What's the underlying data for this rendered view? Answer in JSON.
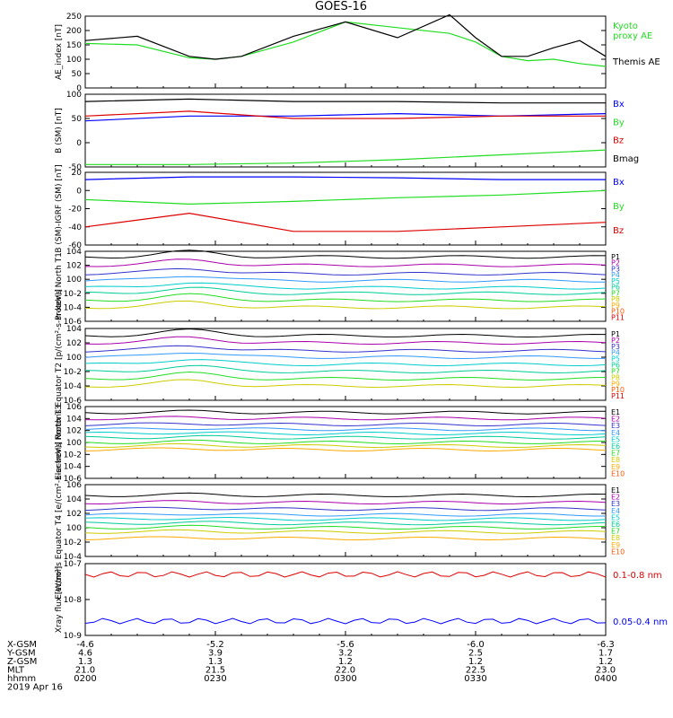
{
  "title": "GOES-16",
  "colors": {
    "black": "#000000",
    "green": "#22dd22",
    "blue": "#0000ff",
    "red": "#dd0000",
    "p_palette": [
      "#000000",
      "#aa00aa",
      "#3333cc",
      "#3399ff",
      "#00cccc",
      "#00cc99",
      "#22dd22",
      "#cccc00",
      "#ffaa00",
      "#ff5500",
      "#dd0000"
    ],
    "e_palette": [
      "#000000",
      "#aa00aa",
      "#3333cc",
      "#3399ff",
      "#00cccc",
      "#00cc99",
      "#22dd22",
      "#cccc00",
      "#ffaa00",
      "#ff5500"
    ]
  },
  "bottom_axis": {
    "rows": [
      {
        "label": "X-GSM",
        "values": [
          "-4.6",
          "-5.2",
          "-5.6",
          "-6.0",
          "-6.3"
        ]
      },
      {
        "label": "Y-GSM",
        "values": [
          "4.6",
          "3.9",
          "3.2",
          "2.5",
          "1.7"
        ]
      },
      {
        "label": "Z-GSM",
        "values": [
          "1.3",
          "1.3",
          "1.2",
          "1.2",
          "1.2"
        ]
      },
      {
        "label": "MLT",
        "values": [
          "21.0",
          "21.5",
          "22.0",
          "22.5",
          "23.0"
        ]
      },
      {
        "label": "hhmm",
        "values": [
          "0200",
          "0230",
          "0300",
          "0330",
          "0400"
        ]
      }
    ],
    "date": "2019 Apr 16"
  },
  "chart_data": [
    {
      "type": "line",
      "ylabel": "AE_index [nT]",
      "ylim": [
        0,
        250
      ],
      "yticks": [
        "0",
        "50",
        "100",
        "150",
        "200",
        "250"
      ],
      "x": [
        0,
        0.1,
        0.2,
        0.25,
        0.3,
        0.4,
        0.5,
        0.6,
        0.7,
        0.75,
        0.8,
        0.85,
        0.9,
        0.95,
        1.0
      ],
      "series": [
        {
          "name": "Kyoto proxy AE",
          "label_lines": [
            "Kyoto",
            "proxy AE"
          ],
          "color": "green",
          "values": [
            155,
            150,
            105,
            100,
            110,
            160,
            230,
            210,
            190,
            160,
            110,
            95,
            100,
            85,
            75
          ]
        },
        {
          "name": "Themis AE",
          "label_lines": [
            "Themis AE"
          ],
          "color": "black",
          "values": [
            165,
            180,
            110,
            100,
            110,
            180,
            230,
            175,
            255,
            175,
            110,
            110,
            140,
            165,
            110
          ]
        }
      ]
    },
    {
      "type": "line",
      "ylabel": "B (SM) [nT]",
      "ylim": [
        -50,
        100
      ],
      "yticks": [
        "-50",
        "0",
        "50",
        "100"
      ],
      "x": [
        0,
        0.2,
        0.4,
        0.6,
        0.8,
        1.0
      ],
      "series": [
        {
          "name": "Bx",
          "color": "blue",
          "values": [
            45,
            55,
            55,
            60,
            55,
            60
          ]
        },
        {
          "name": "By",
          "color": "green",
          "values": [
            -45,
            -45,
            -42,
            -35,
            -25,
            -15
          ]
        },
        {
          "name": "Bz",
          "color": "red",
          "values": [
            55,
            65,
            50,
            50,
            55,
            55
          ]
        },
        {
          "name": "Bmag",
          "color": "black",
          "values": [
            85,
            90,
            85,
            85,
            82,
            82
          ]
        }
      ]
    },
    {
      "type": "line",
      "ylabel": "B (SM)-IGRF (SM) [nT]",
      "ylim": [
        -60,
        20
      ],
      "yticks": [
        "-60",
        "-40",
        "-20",
        "0",
        "20"
      ],
      "x": [
        0,
        0.2,
        0.4,
        0.6,
        0.8,
        1.0
      ],
      "series": [
        {
          "name": "Bx",
          "color": "blue",
          "values": [
            12,
            15,
            15,
            14,
            12,
            12
          ]
        },
        {
          "name": "By",
          "color": "green",
          "values": [
            -10,
            -15,
            -12,
            -8,
            -5,
            0
          ]
        },
        {
          "name": "Bz",
          "color": "red",
          "values": [
            -40,
            -25,
            -45,
            -45,
            -40,
            -35
          ]
        }
      ]
    },
    {
      "type": "line",
      "ylabel": "Protons North T1",
      "log": true,
      "ylim": [
        -6,
        4
      ],
      "yticks": [
        "10^4",
        "10^2",
        "10^0",
        "10^-2",
        "10^-4",
        "10^-6"
      ],
      "legend": [
        "P1",
        "P2",
        "P3",
        "P4",
        "P5",
        "P6",
        "P7",
        "P8",
        "P9",
        "P10",
        "P11"
      ],
      "series_log10": [
        3.2,
        2.0,
        0.8,
        -0.2,
        -1.2,
        -2.0,
        -3.0,
        -4.0
      ]
    },
    {
      "type": "line",
      "ylabel": "Protons Equator T2 [p/(cm²-s-sr-keV)]",
      "log": true,
      "ylim": [
        -6,
        4
      ],
      "yticks": [
        "10^4",
        "10^2",
        "10^0",
        "10^-2",
        "10^-4",
        "10^-6"
      ],
      "legend": [
        "P1",
        "P2",
        "P3",
        "P4",
        "P5",
        "P6",
        "P7",
        "P8",
        "P9",
        "P10",
        "P11"
      ],
      "series_log10": [
        3.0,
        2.0,
        0.9,
        0.0,
        -1.0,
        -2.0,
        -3.0,
        -4.0
      ]
    },
    {
      "type": "line",
      "ylabel": "Electrons North T3",
      "log": true,
      "ylim": [
        -6,
        6
      ],
      "yticks": [
        "10^6",
        "10^4",
        "10^2",
        "10^0",
        "10^-2",
        "10^-4",
        "10^-6"
      ],
      "legend": [
        "E1",
        "E2",
        "E3",
        "E4",
        "E5",
        "E6",
        "E7",
        "E8",
        "E9",
        "E10"
      ],
      "series_log10": [
        5.0,
        4.0,
        3.0,
        2.2,
        1.5,
        0.8,
        0.0,
        -0.6,
        -1.2
      ]
    },
    {
      "type": "line",
      "ylabel": "Electrons Equator T4 [e/(cm²-s-sr-keV)]",
      "log": true,
      "ylim": [
        -4,
        6
      ],
      "yticks": [
        "10^6",
        "10^4",
        "10^2",
        "10^0",
        "10^-2",
        "10^-4"
      ],
      "legend": [
        "E1",
        "E2",
        "E3",
        "E4",
        "E5",
        "E6",
        "E7",
        "E8",
        "E9",
        "E10"
      ],
      "series_log10": [
        4.5,
        3.5,
        2.6,
        1.8,
        1.2,
        0.6,
        0.0,
        -0.6,
        -1.5
      ]
    },
    {
      "type": "line",
      "ylabel": "Xray flux [W/m²]",
      "log": true,
      "ylim": [
        -9,
        -7
      ],
      "yticks": [
        "10^-7",
        "10^-8",
        "10^-9"
      ],
      "series": [
        {
          "name": "0.1-0.8 nm",
          "color": "red",
          "log10": -7.3
        },
        {
          "name": "0.05-0.4 nm",
          "color": "blue",
          "log10": -8.6
        }
      ]
    }
  ]
}
